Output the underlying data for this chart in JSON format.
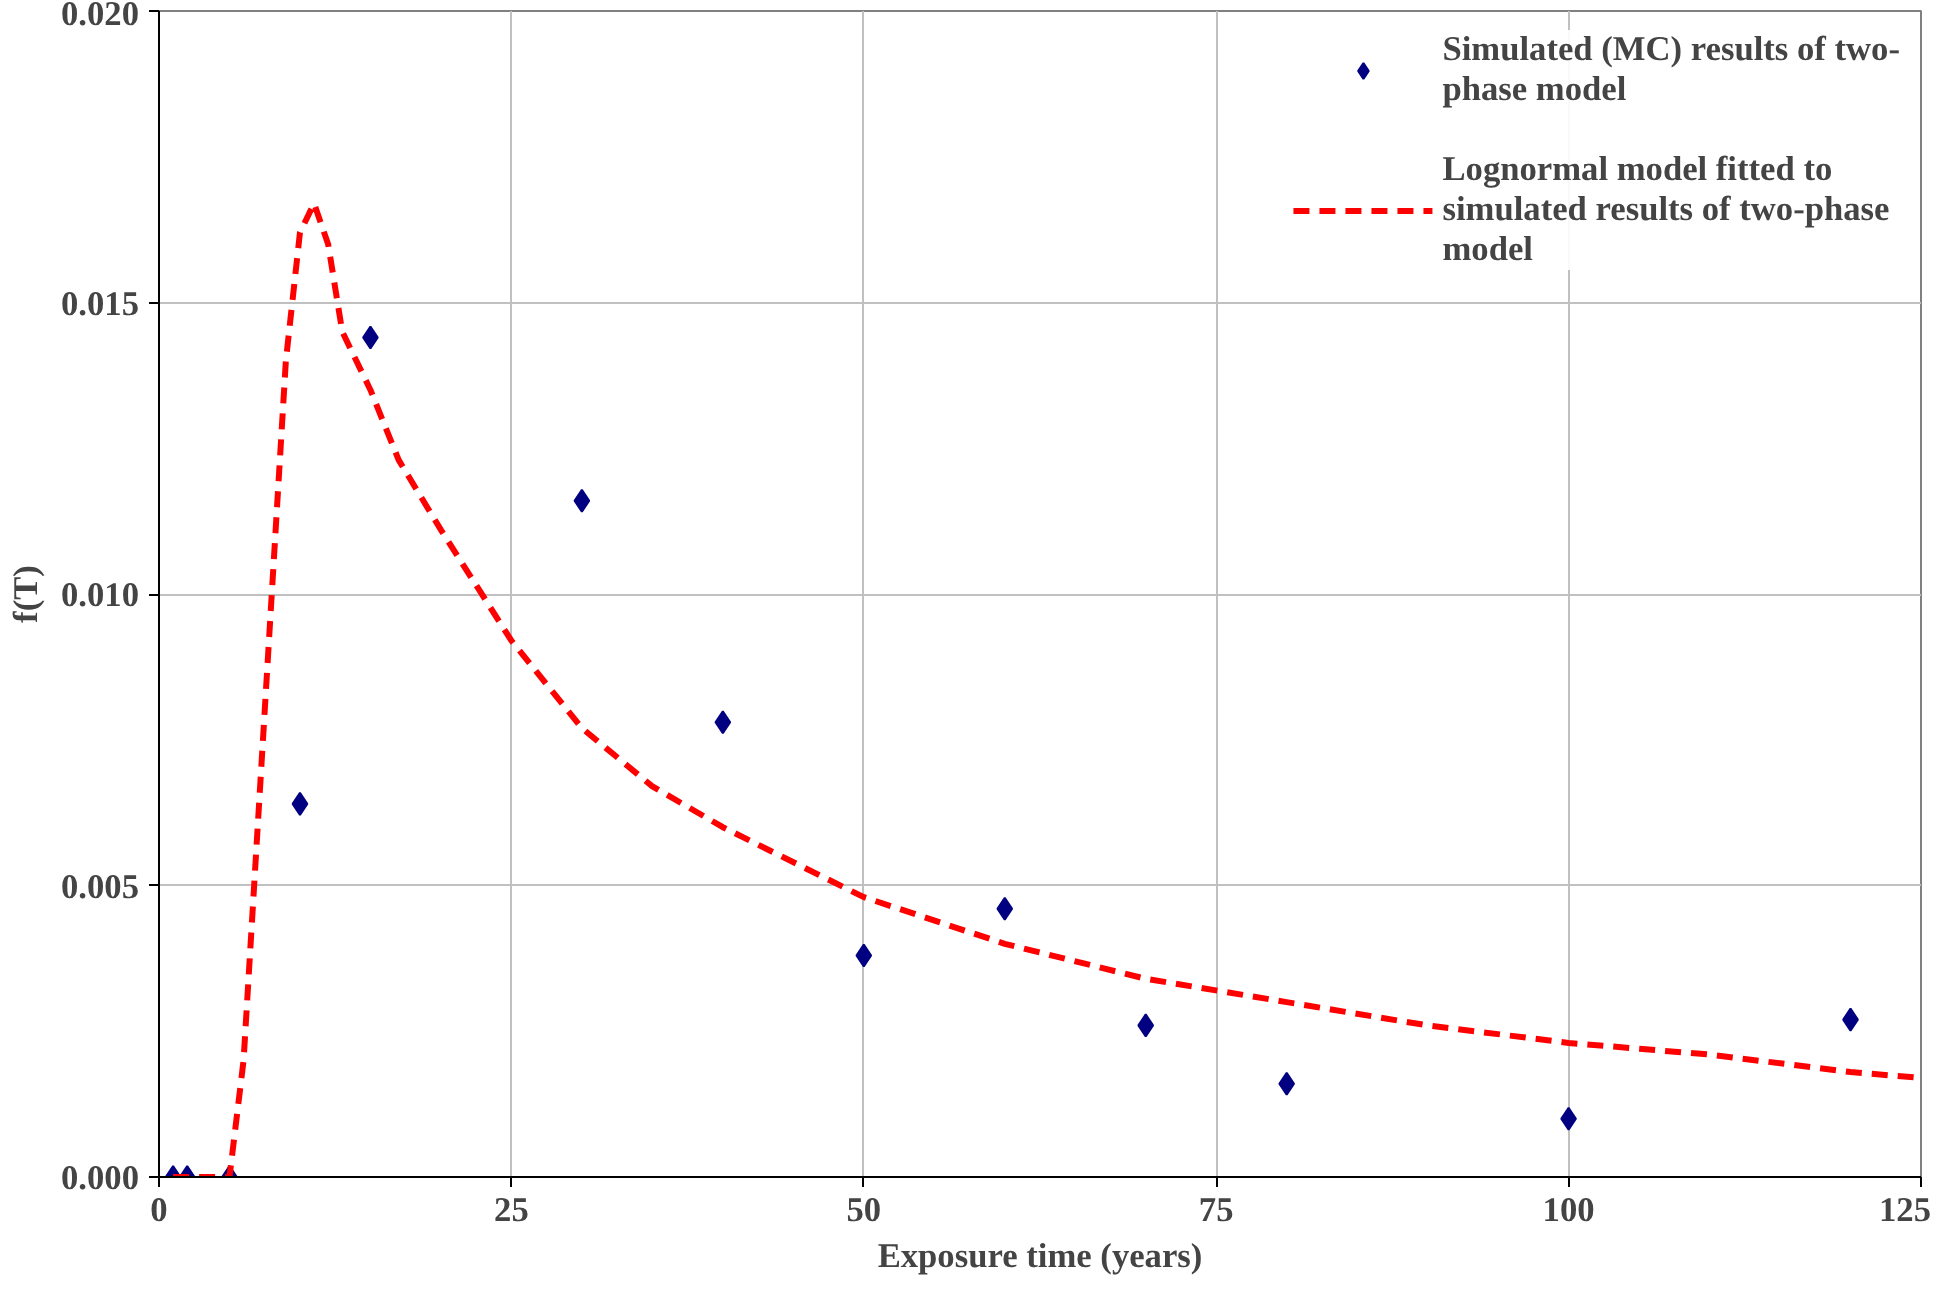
{
  "chart_data": {
    "type": "scatter",
    "xlabel": "Exposure time (years)",
    "ylabel": "f(T)",
    "xlim": [
      0,
      125
    ],
    "xticks": [
      0,
      25,
      50,
      75,
      100,
      125
    ],
    "ylim": [
      0,
      0.02
    ],
    "yticks": [
      {
        "value": 0,
        "label": "0.000"
      },
      {
        "value": 0.005,
        "label": "0.005"
      },
      {
        "value": 0.01,
        "label": "0.010"
      },
      {
        "value": 0.015,
        "label": "0.015"
      },
      {
        "value": 0.02,
        "label": "0.020"
      }
    ],
    "grid": true,
    "legend": "top right",
    "series": [
      {
        "name": "Simulated (MC) results of two-phase model",
        "marker": "diamond",
        "color": "#000080",
        "x": [
          1,
          2,
          5,
          10,
          15,
          30,
          40,
          50,
          60,
          70,
          80,
          100,
          120
        ],
        "values": [
          0,
          0,
          0,
          0.0064,
          0.0144,
          0.0116,
          0.0078,
          0.0038,
          0.0046,
          0.0026,
          0.0016,
          0.001,
          0.0027
        ]
      },
      {
        "name": "Lognormal model fitted to simulated results of two-phase model",
        "type": "line",
        "line_style": "dashed",
        "marker": "none",
        "color": "#ff0000",
        "x": [
          1,
          3,
          5,
          6,
          7,
          8,
          9,
          10,
          11,
          12,
          13,
          15,
          17,
          20,
          25,
          30,
          35,
          40,
          50,
          60,
          70,
          80,
          90,
          100,
          110,
          120,
          125
        ],
        "values": [
          0,
          0,
          0,
          0.002,
          0.006,
          0.01,
          0.014,
          0.0162,
          0.0167,
          0.016,
          0.0145,
          0.0135,
          0.0123,
          0.0111,
          0.0092,
          0.0077,
          0.0067,
          0.006,
          0.0048,
          0.004,
          0.0034,
          0.003,
          0.0026,
          0.0023,
          0.0021,
          0.0018,
          0.0017
        ]
      }
    ]
  }
}
